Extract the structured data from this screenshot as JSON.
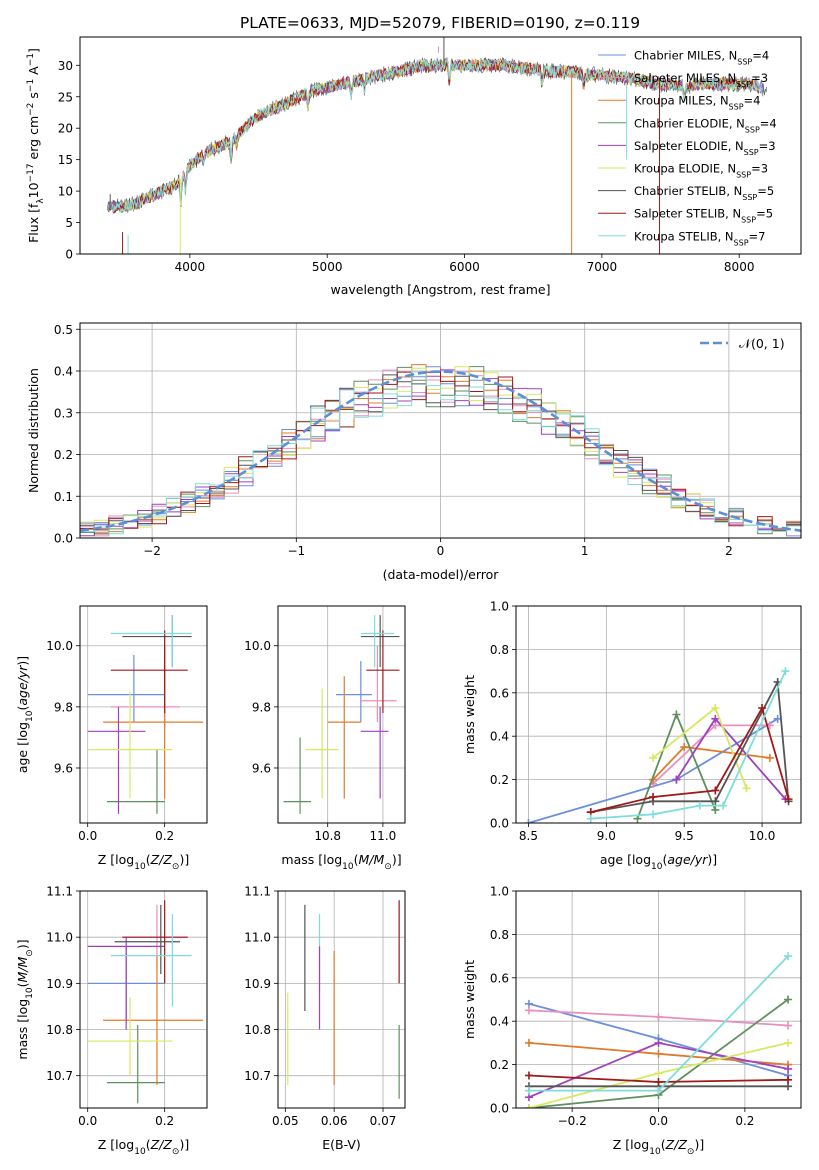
{
  "figure": {
    "title": "PLATE=0633, MJD=52079, FIBERID=0190, z=0.119"
  },
  "chart_data": [
    {
      "id": "spectrum",
      "type": "line",
      "xlabel": "wavelength [Angstrom, rest frame]",
      "ylabel": "Flux [f_λ 10^-17 erg cm^-2 s^-1 A^-1]",
      "xlim": [
        3200,
        8450
      ],
      "ylim": [
        0,
        34.5
      ],
      "xticks": [
        4000,
        5000,
        6000,
        7000,
        8000
      ],
      "yticks": [
        0,
        5,
        10,
        15,
        20,
        25,
        30
      ],
      "legend_position": "top-right",
      "series": [
        {
          "name": "Chabrier MILES, N_SSP=4",
          "color": "#6a8fdc"
        },
        {
          "name": "Salpeter MILES, N_SSP=3",
          "color": "#e88fbf"
        },
        {
          "name": "Kroupa MILES, N_SSP=4",
          "color": "#e07b2b"
        },
        {
          "name": "Chabrier ELODIE, N_SSP=4",
          "color": "#5f8f5f"
        },
        {
          "name": "Salpeter ELODIE, N_SSP=3",
          "color": "#a040c0"
        },
        {
          "name": "Kroupa ELODIE, N_SSP=3",
          "color": "#d9e860"
        },
        {
          "name": "Chabrier STELIB, N_SSP=5",
          "color": "#555555"
        },
        {
          "name": "Salpeter STELIB, N_SSP=5",
          "color": "#a01818"
        },
        {
          "name": "Kroupa STELIB, N_SSP=7",
          "color": "#80dcdc"
        }
      ],
      "continuum": {
        "x": [
          3400,
          3500,
          3600,
          3700,
          3800,
          3900,
          4000,
          4100,
          4200,
          4300,
          4400,
          4500,
          4600,
          4700,
          4800,
          4900,
          5000,
          5100,
          5200,
          5300,
          5400,
          5500,
          5600,
          5700,
          5800,
          5900,
          6000,
          6100,
          6200,
          6300,
          6400,
          6500,
          6600,
          6700,
          6800,
          6900,
          7000,
          7100,
          7200,
          7300,
          7400,
          7500,
          7600,
          7700,
          7800,
          7900,
          8000,
          8100,
          8200
        ],
        "y": [
          7.5,
          7.5,
          8,
          9,
          10,
          11,
          14,
          16,
          17,
          18,
          20,
          22,
          23,
          24,
          25,
          26,
          26.5,
          27,
          27.5,
          28,
          28.5,
          29,
          29.5,
          30,
          30,
          30,
          30,
          30,
          30,
          30,
          29.5,
          29.5,
          29,
          29,
          29,
          28.5,
          28.5,
          28,
          28,
          27.5,
          27,
          27,
          26.5,
          27,
          27,
          27,
          27,
          27,
          26
        ]
      }
    },
    {
      "id": "residuals",
      "type": "histogram",
      "xlabel": "(data-model)/error",
      "ylabel": "Normed distribution",
      "xlim": [
        -2.5,
        2.5
      ],
      "ylim": [
        0,
        0.515
      ],
      "xticks": [
        -2,
        -1,
        0,
        1,
        2
      ],
      "yticks": [
        0.0,
        0.1,
        0.2,
        0.3,
        0.4,
        0.5
      ],
      "grid": true,
      "legend_position": "top-right",
      "reference_curve": {
        "label": "𝒩(0, 1)",
        "mean": 0,
        "sigma": 1,
        "color": "#5b8fd8"
      },
      "bin_width": 0.1
    },
    {
      "id": "age-vs-Z",
      "type": "scatter",
      "xlabel": "Z [log10(Z/Z⊙)]",
      "ylabel": "age [log10(age/yr)]",
      "xlim": [
        -0.02,
        0.31
      ],
      "ylim": [
        9.42,
        10.13
      ],
      "xticks": [
        0.0,
        0.2
      ],
      "yticks": [
        9.6,
        9.8,
        10.0
      ],
      "grid": true
    },
    {
      "id": "age-vs-mass",
      "type": "scatter",
      "xlabel": "mass [log10(M/M⊙)]",
      "ylabel": "",
      "xlim": [
        10.62,
        11.08
      ],
      "ylim": [
        9.42,
        10.13
      ],
      "xticks": [
        10.8,
        11.0
      ],
      "yticks": [
        9.6,
        9.8,
        10.0
      ],
      "grid": true
    },
    {
      "id": "weight-vs-age",
      "type": "line",
      "xlabel": "age [log10(age/yr)]",
      "ylabel": "mass weight",
      "xlim": [
        8.42,
        10.25
      ],
      "ylim": [
        0,
        1
      ],
      "xticks": [
        8.5,
        9.0,
        9.5,
        10.0
      ],
      "yticks": [
        0.0,
        0.2,
        0.4,
        0.6,
        0.8,
        1.0
      ],
      "grid": true,
      "series": [
        {
          "color": "#6a8fdc",
          "x": [
            8.5,
            9.45,
            10.1
          ],
          "y": [
            0.0,
            0.2,
            0.48
          ]
        },
        {
          "color": "#e88fbf",
          "x": [
            9.3,
            9.7,
            10.05
          ],
          "y": [
            0.18,
            0.45,
            0.45
          ]
        },
        {
          "color": "#e07b2b",
          "x": [
            9.3,
            9.5,
            10.05
          ],
          "y": [
            0.2,
            0.35,
            0.3
          ]
        },
        {
          "color": "#5f8f5f",
          "x": [
            9.2,
            9.45,
            9.7
          ],
          "y": [
            0.02,
            0.5,
            0.06
          ]
        },
        {
          "color": "#a040c0",
          "x": [
            9.45,
            9.7,
            10.15
          ],
          "y": [
            0.2,
            0.48,
            0.11
          ]
        },
        {
          "color": "#d9e860",
          "x": [
            9.3,
            9.7,
            9.9
          ],
          "y": [
            0.3,
            0.53,
            0.16
          ]
        },
        {
          "color": "#555555",
          "x": [
            8.9,
            9.3,
            9.7,
            10.1,
            10.17
          ],
          "y": [
            0.05,
            0.1,
            0.1,
            0.65,
            0.1
          ]
        },
        {
          "color": "#a01818",
          "x": [
            8.9,
            9.3,
            9.7,
            10.0,
            10.17
          ],
          "y": [
            0.05,
            0.12,
            0.15,
            0.53,
            0.11
          ]
        },
        {
          "color": "#80dcdc",
          "x": [
            8.9,
            9.3,
            9.6,
            9.75,
            10.15
          ],
          "y": [
            0.02,
            0.04,
            0.08,
            0.08,
            0.7
          ]
        }
      ]
    },
    {
      "id": "mass-vs-Z",
      "type": "scatter",
      "xlabel": "Z [log10(Z/Z⊙)]",
      "ylabel": "mass [log10(M/M⊙)]",
      "xlim": [
        -0.02,
        0.31
      ],
      "ylim": [
        10.63,
        11.1
      ],
      "xticks": [
        0.0,
        0.2
      ],
      "yticks": [
        10.7,
        10.8,
        10.9,
        11.0,
        11.1
      ],
      "grid": true
    },
    {
      "id": "mass-vs-ebv",
      "type": "scatter",
      "xlabel": "E(B-V)",
      "ylabel": "",
      "xlim": [
        0.0485,
        0.0745
      ],
      "ylim": [
        10.63,
        11.1
      ],
      "xticks": [
        0.05,
        0.06,
        0.07
      ],
      "yticks": [
        10.7,
        10.8,
        10.9,
        11.0,
        11.1
      ],
      "grid": true,
      "points": [
        {
          "color": "#d9e860",
          "x": 0.0505,
          "lo": 10.68,
          "hi": 10.88
        },
        {
          "color": "#555555",
          "x": 0.054,
          "lo": 10.84,
          "hi": 11.07
        },
        {
          "color": "#80dcdc",
          "x": 0.057,
          "lo": 10.88,
          "hi": 11.05
        },
        {
          "color": "#a040c0",
          "x": 0.057,
          "lo": 10.8,
          "hi": 10.98
        },
        {
          "color": "#e07b2b",
          "x": 0.06,
          "lo": 10.68,
          "hi": 10.97
        },
        {
          "color": "#a01818",
          "x": 0.0733,
          "lo": 10.9,
          "hi": 11.08
        },
        {
          "color": "#5f8f5f",
          "x": 0.0733,
          "lo": 10.65,
          "hi": 10.81
        }
      ]
    },
    {
      "id": "weight-vs-Z",
      "type": "line",
      "xlabel": "Z [log10(Z/Z⊙)]",
      "ylabel": "mass weight",
      "xlim": [
        -0.33,
        0.33
      ],
      "ylim": [
        0,
        1
      ],
      "xticks": [
        -0.2,
        0.0,
        0.2
      ],
      "yticks": [
        0.0,
        0.2,
        0.4,
        0.6,
        0.8,
        1.0
      ],
      "grid": true,
      "series": [
        {
          "color": "#6a8fdc",
          "x": [
            -0.3,
            0.0,
            0.3
          ],
          "y": [
            0.48,
            0.32,
            0.15
          ]
        },
        {
          "color": "#e88fbf",
          "x": [
            -0.3,
            0.0,
            0.3
          ],
          "y": [
            0.45,
            0.42,
            0.38
          ]
        },
        {
          "color": "#e07b2b",
          "x": [
            -0.3,
            0.0,
            0.3
          ],
          "y": [
            0.3,
            0.25,
            0.2
          ]
        },
        {
          "color": "#5f8f5f",
          "x": [
            -0.3,
            0.0,
            0.3
          ],
          "y": [
            0.0,
            0.06,
            0.5
          ]
        },
        {
          "color": "#a040c0",
          "x": [
            -0.3,
            0.0,
            0.3
          ],
          "y": [
            0.05,
            0.3,
            0.18
          ]
        },
        {
          "color": "#d9e860",
          "x": [
            -0.3,
            0.0,
            0.3
          ],
          "y": [
            0.0,
            0.16,
            0.3
          ]
        },
        {
          "color": "#555555",
          "x": [
            -0.3,
            0.0,
            0.3
          ],
          "y": [
            0.1,
            0.1,
            0.1
          ]
        },
        {
          "color": "#a01818",
          "x": [
            -0.3,
            0.0,
            0.3
          ],
          "y": [
            0.15,
            0.12,
            0.13
          ]
        },
        {
          "color": "#80dcdc",
          "x": [
            -0.3,
            0.0,
            0.3
          ],
          "y": [
            0.08,
            0.08,
            0.7
          ]
        }
      ]
    }
  ]
}
